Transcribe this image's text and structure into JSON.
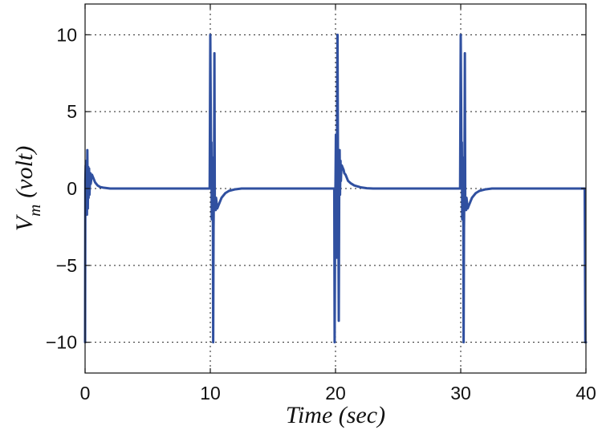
{
  "chart_data": {
    "type": "line",
    "title": "",
    "xlabel": "Time (sec)",
    "ylabel_main": "V",
    "ylabel_subscript": "m",
    "ylabel_units": "(volt)",
    "xlim": [
      0,
      40
    ],
    "ylim": [
      -12,
      12
    ],
    "xticks": [
      0,
      10,
      20,
      30,
      40
    ],
    "yticks": [
      -10,
      -5,
      0,
      5,
      10
    ],
    "xtick_labels": [
      "0",
      "10",
      "20",
      "30",
      "40"
    ],
    "ytick_labels": [
      "−10",
      "−5",
      "0",
      "5",
      "10"
    ],
    "grid": true,
    "series": [
      {
        "name": "Vm",
        "color": "#3050a0",
        "x": [
          0,
          0.02,
          0.05,
          0.08,
          0.1,
          0.12,
          0.15,
          0.18,
          0.2,
          0.22,
          0.25,
          0.28,
          0.3,
          0.32,
          0.35,
          0.38,
          0.4,
          0.42,
          0.45,
          0.48,
          0.5,
          0.55,
          0.6,
          0.65,
          0.7,
          0.8,
          0.9,
          1.0,
          1.2,
          1.5,
          2.0,
          2.5,
          3.0,
          5.0,
          9.95,
          10.0,
          10.03,
          10.06,
          10.09,
          10.12,
          10.15,
          10.18,
          10.2,
          10.23,
          10.26,
          10.3,
          10.33,
          10.36,
          10.4,
          10.43,
          10.46,
          10.5,
          10.55,
          10.6,
          10.65,
          10.7,
          10.8,
          10.9,
          11.0,
          11.2,
          11.5,
          12.0,
          12.5,
          13.0,
          15.0,
          19.9,
          19.93,
          19.97,
          20.0,
          20.03,
          20.06,
          20.1,
          20.13,
          20.16,
          20.2,
          20.23,
          20.26,
          20.3,
          20.33,
          20.36,
          20.4,
          20.43,
          20.46,
          20.5,
          20.55,
          20.6,
          20.65,
          20.7,
          20.8,
          20.9,
          21.0,
          21.2,
          21.5,
          22.0,
          22.5,
          23.0,
          25.0,
          29.95,
          30.0,
          30.03,
          30.06,
          30.09,
          30.12,
          30.15,
          30.18,
          30.2,
          30.23,
          30.26,
          30.3,
          30.33,
          30.36,
          30.4,
          30.43,
          30.46,
          30.5,
          30.55,
          30.6,
          30.65,
          30.7,
          30.8,
          30.9,
          31.0,
          31.2,
          31.5,
          32.0,
          32.5,
          33.0,
          35.0,
          39.9,
          39.92,
          39.95,
          40.0
        ],
        "y": [
          -10,
          0.5,
          1.5,
          -1.2,
          1.8,
          0.3,
          -1.7,
          2.5,
          0.4,
          -1.3,
          1.4,
          -0.6,
          0.8,
          1.3,
          -0.4,
          0.2,
          0.6,
          1.0,
          0.3,
          0.5,
          0.9,
          0.9,
          0.8,
          0.7,
          0.6,
          0.4,
          0.3,
          0.2,
          0.1,
          0.05,
          0.0,
          0.0,
          0.0,
          0.0,
          0.0,
          10.0,
          6.0,
          1.5,
          3.0,
          -2.0,
          1.0,
          -1.5,
          2.0,
          -10.0,
          -2.5,
          0.5,
          8.8,
          -0.8,
          -1.0,
          -1.4,
          -0.6,
          -0.9,
          -1.3,
          -1.2,
          -1.1,
          -1.0,
          -0.8,
          -0.6,
          -0.5,
          -0.3,
          -0.15,
          -0.05,
          0.0,
          0.0,
          0.0,
          0.0,
          -10.0,
          -2.0,
          0.5,
          3.5,
          -1.5,
          -4.5,
          6.5,
          10.0,
          1.0,
          -2.0,
          -8.6,
          1.2,
          2.5,
          -0.4,
          1.8,
          0.5,
          1.2,
          1.5,
          1.4,
          1.3,
          1.2,
          1.0,
          0.9,
          0.7,
          0.5,
          0.35,
          0.2,
          0.08,
          0.02,
          0.0,
          0.0,
          0.0,
          10.0,
          6.0,
          1.5,
          3.0,
          -2.0,
          1.0,
          -1.5,
          2.0,
          -10.0,
          -2.5,
          0.5,
          8.8,
          -0.8,
          -1.0,
          -1.4,
          -0.6,
          -0.9,
          -1.3,
          -1.2,
          -1.1,
          -1.0,
          -0.8,
          -0.6,
          -0.5,
          -0.3,
          -0.15,
          -0.05,
          0.0,
          0.0,
          0.0,
          0.0,
          -4.0,
          -10.0,
          -10.0
        ]
      }
    ]
  }
}
